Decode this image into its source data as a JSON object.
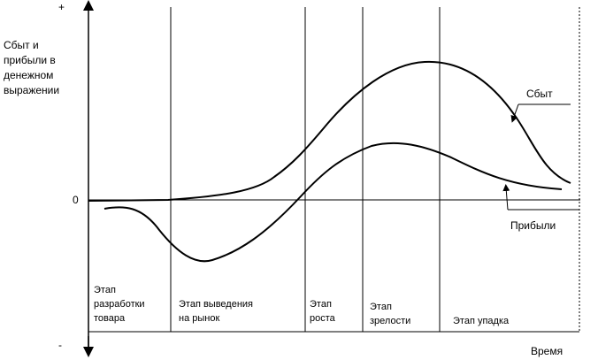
{
  "axis": {
    "plus": "+",
    "minus": "-",
    "zero": "0",
    "y_label": [
      "Сбыт и",
      "прибыли в",
      "денежном",
      "выражении"
    ],
    "x_label": "Время"
  },
  "curves": {
    "sales_label": "Сбыт",
    "profit_label": "Прибыли"
  },
  "stages": [
    {
      "lines": [
        "Этап",
        "разработки",
        "товара"
      ]
    },
    {
      "lines": [
        "Этап выведения",
        "на рынок"
      ]
    },
    {
      "lines": [
        "Этап",
        "роста"
      ]
    },
    {
      "lines": [
        "Этап",
        "зрелости"
      ]
    },
    {
      "lines": [
        "Этап упадка"
      ]
    }
  ]
}
